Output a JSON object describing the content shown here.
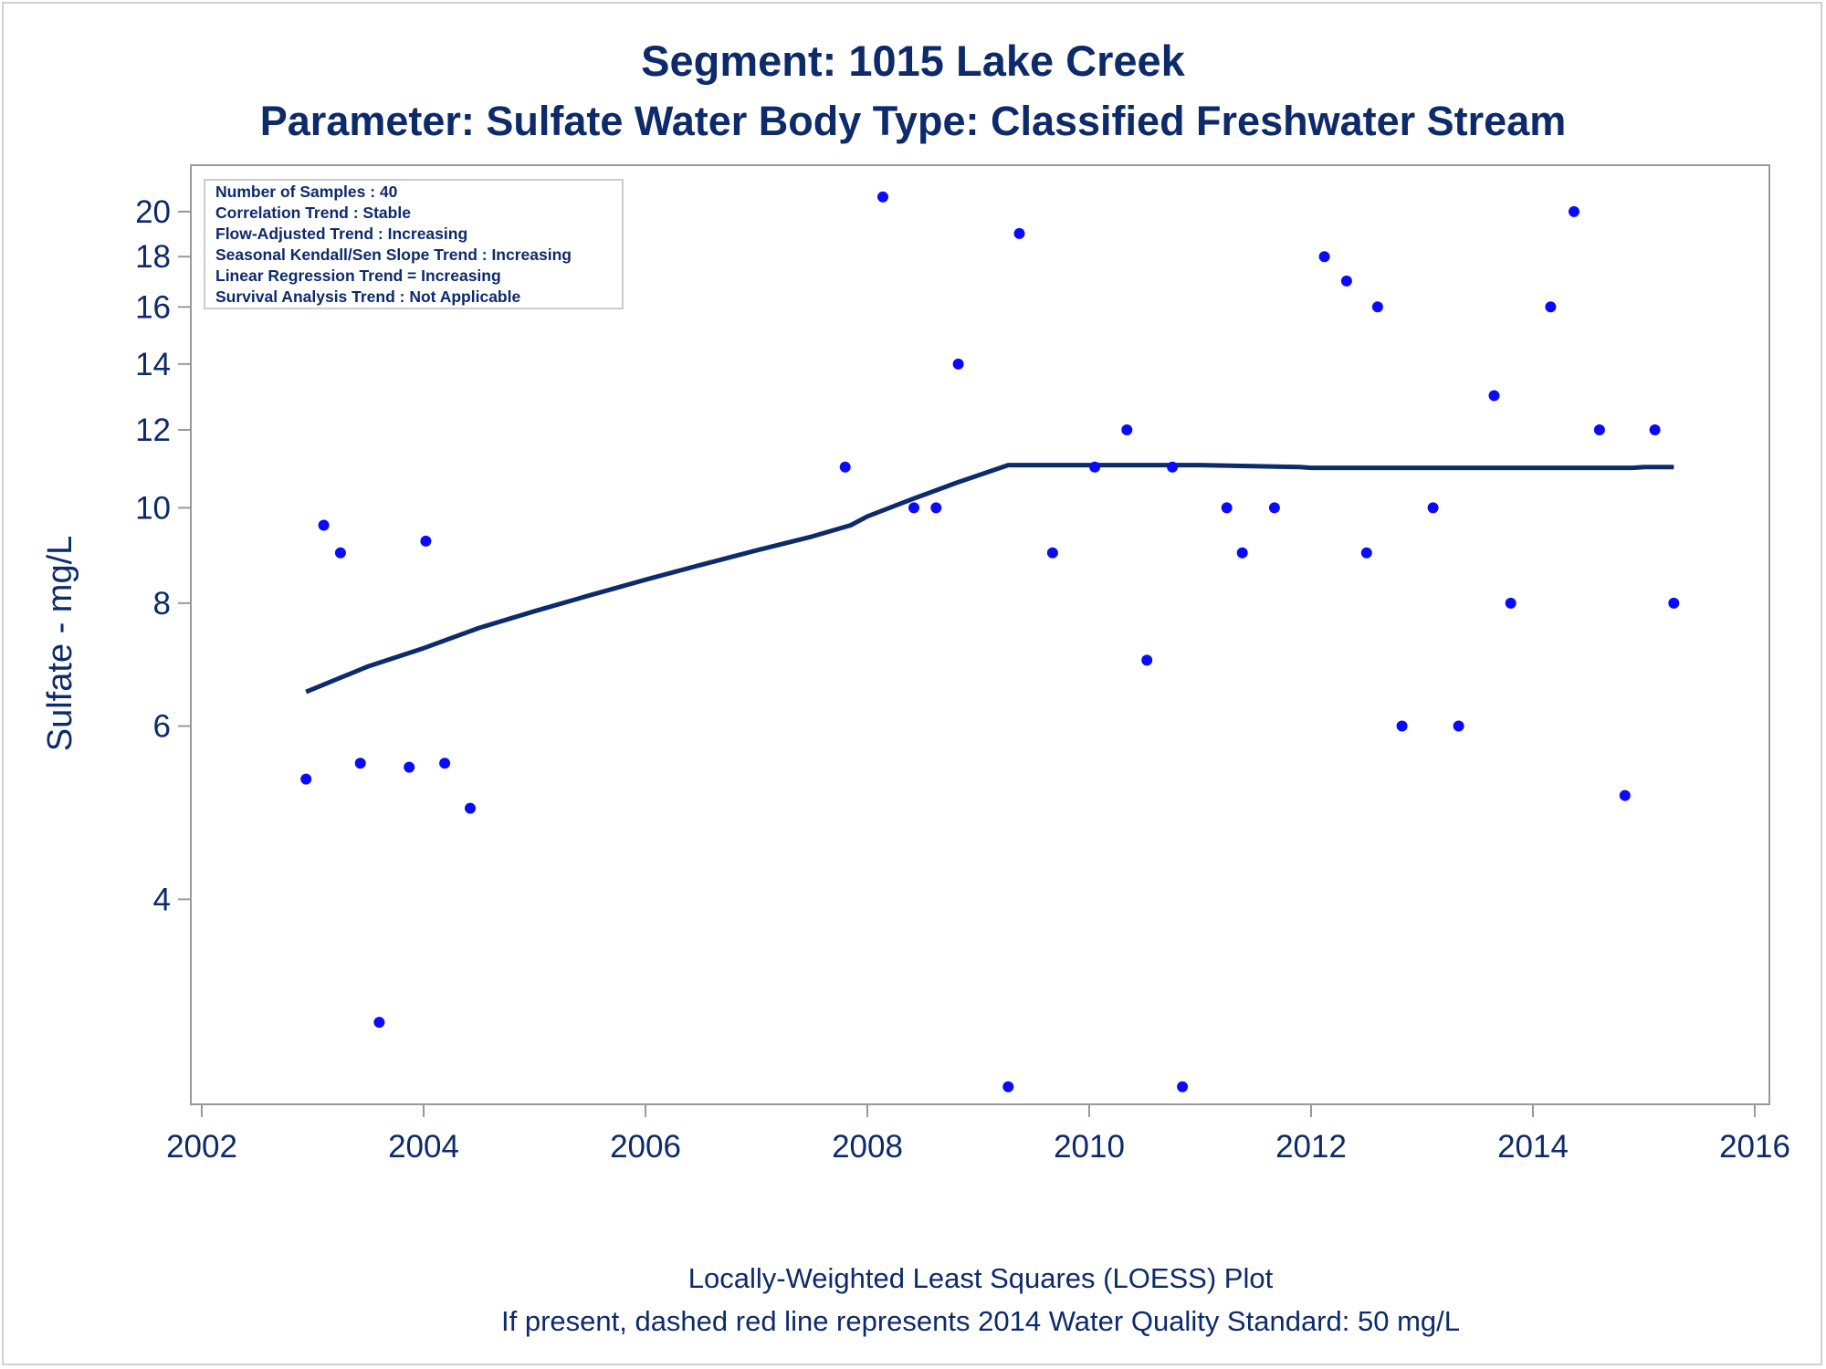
{
  "chart_data": {
    "type": "scatter",
    "title": "Segment: 1015  Lake Creek",
    "subtitle": "Parameter: Sulfate   Water Body Type: Classified Freshwater Stream",
    "xlabel": "",
    "ylabel": "Sulfate - mg/L",
    "y_scale": "log",
    "xlim": [
      2002,
      2016
    ],
    "ylim": [
      2.54,
      21.5
    ],
    "x_ticks": [
      2002,
      2004,
      2006,
      2008,
      2010,
      2012,
      2014,
      2016
    ],
    "y_ticks": [
      4,
      6,
      8,
      10,
      12,
      14,
      16,
      18,
      20
    ],
    "grid": false,
    "info_box": [
      "Number of Samples : 40",
      "Correlation Trend : Stable",
      "Flow-Adjusted Trend : Increasing",
      "Seasonal Kendall/Sen Slope Trend : Increasing",
      "Linear Regression Trend = Increasing",
      "Survival Analysis Trend : Not Applicable"
    ],
    "footnotes": [
      "Locally-Weighted Least Squares (LOESS) Plot",
      "If present, dashed red line represents 2014 Water Quality Standard: 50    mg/L"
    ],
    "colors": {
      "points": "#0a0aff",
      "loess_line": "#0d2a6b",
      "text": "#0d2a6b",
      "axis": "#999999"
    },
    "series": [
      {
        "type": "scatter",
        "points": [
          [
            2002.94,
            5.3
          ],
          [
            2003.1,
            9.6
          ],
          [
            2003.25,
            9.0
          ],
          [
            2003.43,
            5.5
          ],
          [
            2003.6,
            3.0
          ],
          [
            2003.87,
            5.45
          ],
          [
            2004.02,
            9.25
          ],
          [
            2004.19,
            5.5
          ],
          [
            2004.42,
            4.95
          ],
          [
            2007.8,
            11.0
          ],
          [
            2008.14,
            20.7
          ],
          [
            2008.42,
            10.0
          ],
          [
            2008.62,
            10.0
          ],
          [
            2008.82,
            14.0
          ],
          [
            2009.27,
            2.58
          ],
          [
            2009.37,
            19.0
          ],
          [
            2009.67,
            9.0
          ],
          [
            2010.05,
            11.0
          ],
          [
            2010.34,
            12.0
          ],
          [
            2010.52,
            7.0
          ],
          [
            2010.75,
            11.0
          ],
          [
            2010.84,
            2.58
          ],
          [
            2011.24,
            10.0
          ],
          [
            2011.38,
            9.0
          ],
          [
            2011.67,
            10.0
          ],
          [
            2012.12,
            18.0
          ],
          [
            2012.32,
            17.0
          ],
          [
            2012.5,
            9.0
          ],
          [
            2012.6,
            16.0
          ],
          [
            2012.82,
            6.0
          ],
          [
            2013.1,
            10.0
          ],
          [
            2013.33,
            6.0
          ],
          [
            2013.65,
            13.0
          ],
          [
            2013.8,
            8.0
          ],
          [
            2014.16,
            16.0
          ],
          [
            2014.37,
            20.0
          ],
          [
            2014.6,
            12.0
          ],
          [
            2014.83,
            5.1
          ],
          [
            2015.1,
            12.0
          ],
          [
            2015.27,
            8.0
          ]
        ]
      },
      {
        "type": "line",
        "points": [
          [
            2002.94,
            6.5
          ],
          [
            2003.5,
            6.9
          ],
          [
            2004.0,
            7.2
          ],
          [
            2004.5,
            7.55
          ],
          [
            2005.0,
            7.85
          ],
          [
            2005.5,
            8.15
          ],
          [
            2006.0,
            8.45
          ],
          [
            2006.5,
            8.75
          ],
          [
            2007.0,
            9.05
          ],
          [
            2007.5,
            9.35
          ],
          [
            2007.85,
            9.6
          ],
          [
            2008.0,
            9.8
          ],
          [
            2008.4,
            10.2
          ],
          [
            2008.8,
            10.6
          ],
          [
            2009.27,
            11.05
          ],
          [
            2010.0,
            11.05
          ],
          [
            2011.0,
            11.05
          ],
          [
            2011.9,
            11.0
          ],
          [
            2012.0,
            10.98
          ],
          [
            2014.0,
            10.98
          ],
          [
            2014.9,
            10.98
          ],
          [
            2015.0,
            11.0
          ],
          [
            2015.27,
            11.0
          ]
        ]
      }
    ]
  }
}
